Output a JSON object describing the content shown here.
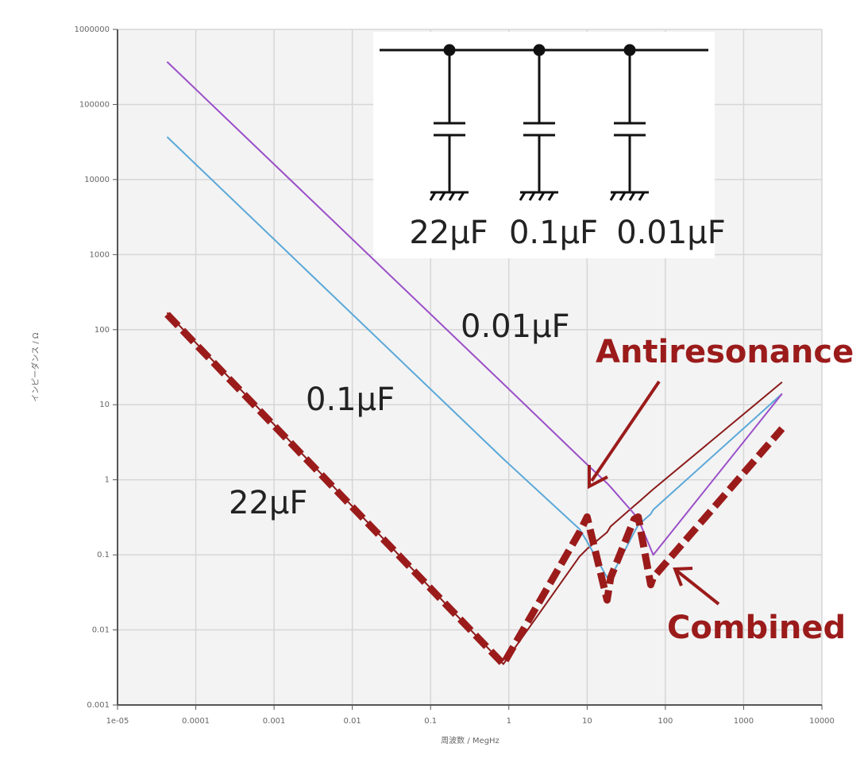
{
  "chart_data": {
    "type": "line",
    "xlabel": "周波数 / MegHz",
    "ylabel": "インピーダンス / Ω",
    "log_x": true,
    "log_y": true,
    "grid": true,
    "xlim": [
      1e-05,
      10000
    ],
    "ylim": [
      0.001,
      1000000
    ],
    "xticks": [
      {
        "value": 1e-05,
        "label": "1e-05"
      },
      0.0001,
      0.001,
      0.01,
      0.1,
      1,
      10,
      100,
      1000,
      10000
    ],
    "yticks": [
      0.001,
      0.01,
      0.1,
      1,
      10,
      100,
      1000,
      10000,
      100000,
      1000000
    ],
    "x": [
      4.3e-05,
      0.85,
      8,
      10,
      18,
      20,
      40,
      45,
      65,
      70,
      3100
    ],
    "series": [
      {
        "name": "22μF",
        "color": "#8b1a1a",
        "style": "solid",
        "values": [
          168,
          0.0035,
          0.095,
          0.12,
          0.2,
          0.24,
          0.45,
          0.5,
          0.7,
          0.75,
          20
        ]
      },
      {
        "name": "0.1μF",
        "color": "#5aa8d8",
        "style": "solid",
        "values": [
          37000,
          1.9,
          0.22,
          0.15,
          0.05,
          0.05,
          0.2,
          0.25,
          0.35,
          0.4,
          14
        ]
      },
      {
        "name": "0.01μF",
        "color": "#9b4fc8",
        "style": "solid",
        "values": [
          370000,
          19,
          2,
          1.6,
          0.9,
          0.8,
          0.35,
          0.3,
          0.12,
          0.1,
          14
        ]
      },
      {
        "name": "Combined",
        "color": "#9b1b1b",
        "style": "dashed",
        "values": [
          160,
          0.0035,
          0.2,
          0.32,
          0.025,
          0.05,
          0.3,
          0.32,
          0.04,
          0.05,
          4.8
        ]
      }
    ],
    "annotations": [
      {
        "text": "Antiresonance"
      }
    ]
  },
  "inset": {
    "labels": [
      "22μF",
      "0.1μF",
      "0.01μF"
    ]
  }
}
